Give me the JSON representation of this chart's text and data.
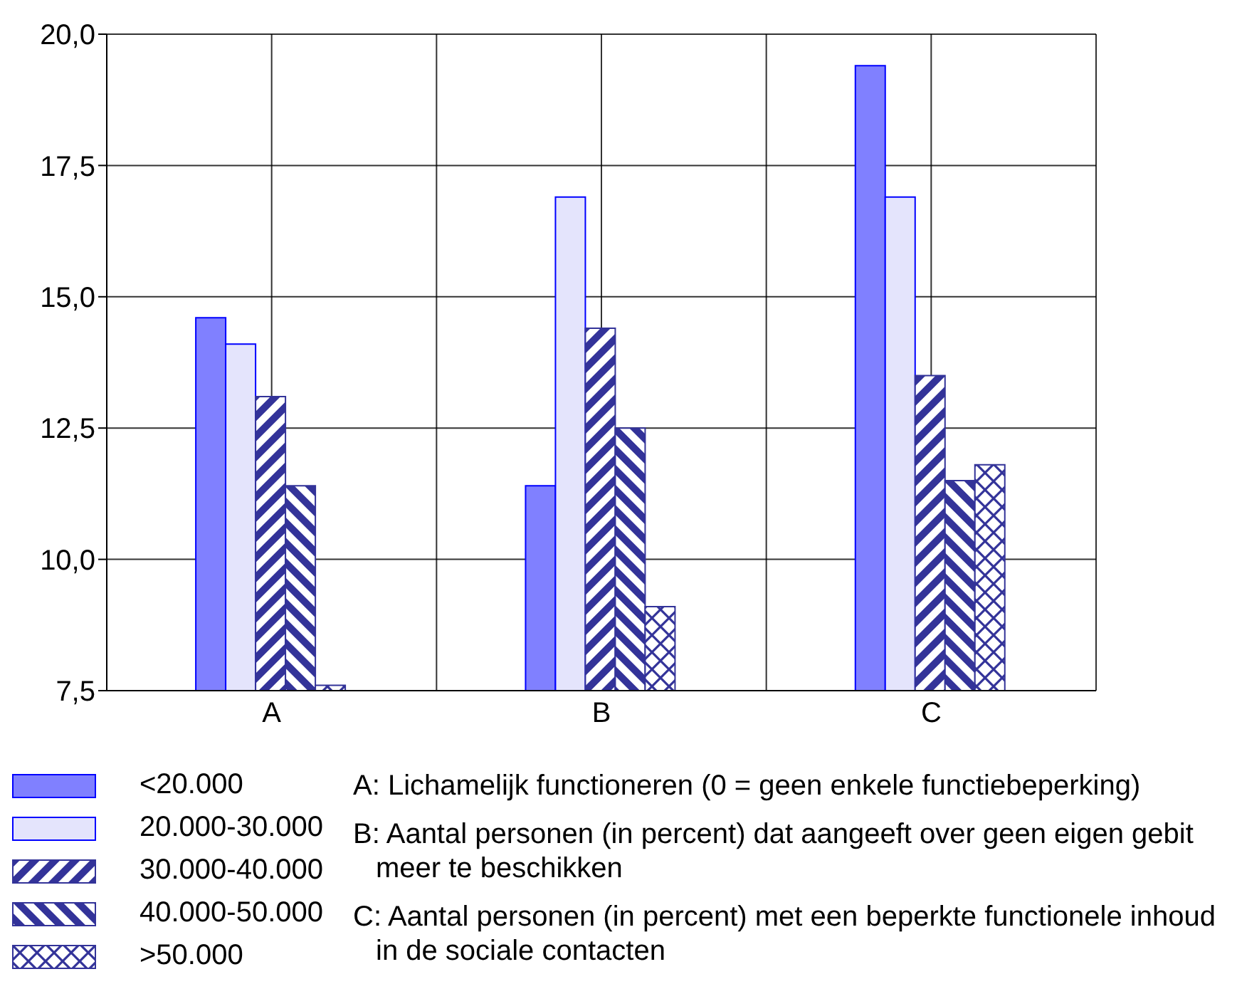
{
  "chart_data": {
    "type": "bar",
    "categories": [
      "A",
      "B",
      "C"
    ],
    "series": [
      {
        "name": "<20.000",
        "color": "#8080ff",
        "values": [
          14.6,
          11.4,
          19.4
        ]
      },
      {
        "name": "20.000-30.000",
        "color": "#e4e4fc",
        "values": [
          14.1,
          16.9,
          16.9
        ]
      },
      {
        "name": "30.000-40.000",
        "color": "#333399",
        "values": [
          13.1,
          14.4,
          13.5
        ]
      },
      {
        "name": "40.000-50.000",
        "color": "#333399",
        "values": [
          11.4,
          12.5,
          11.5
        ]
      },
      {
        "name": ">50.000",
        "color": "#333399",
        "values": [
          7.6,
          9.1,
          11.8
        ]
      }
    ],
    "ylim": [
      7.5,
      20
    ],
    "yticks": [
      {
        "value": 7.5,
        "label": "7,5"
      },
      {
        "value": 10,
        "label": "10,0"
      },
      {
        "value": 12.5,
        "label": "12,5"
      },
      {
        "value": 15,
        "label": "15,0"
      },
      {
        "value": 17.5,
        "label": "17,5"
      },
      {
        "value": 20,
        "label": "20,0"
      }
    ],
    "grid": true,
    "legend": "bottom left",
    "annotations": [
      "A: Lichamelijk functioneren (0 = geen enkele functiebeperking)",
      "B: Aantal personen (in percent) dat aangeeft over geen eigen gebit meer te beschikken",
      "C: Aantal personen (in percent) met een beperkte functionele inhoud in de sociale contacten"
    ]
  }
}
